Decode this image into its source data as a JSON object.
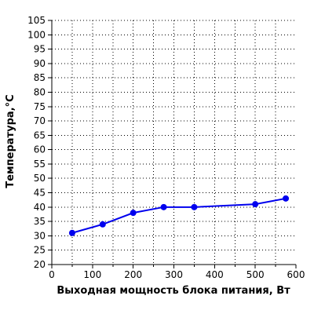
{
  "chart_data": {
    "type": "line",
    "xlabel": "Выходная мощность блока питания, Вт",
    "ylabel": "Температура,°C",
    "xlim": [
      0,
      600
    ],
    "ylim": [
      20,
      105
    ],
    "xticks": [
      0,
      100,
      200,
      300,
      400,
      500,
      600
    ],
    "xminor_step": 50,
    "yticks": [
      20,
      25,
      30,
      35,
      40,
      45,
      50,
      55,
      60,
      65,
      70,
      75,
      80,
      85,
      90,
      95,
      100,
      105
    ],
    "grid": true,
    "grid_style": "dotted",
    "series": [
      {
        "x": [
          50,
          125,
          200,
          275,
          350,
          500,
          575
        ],
        "y": [
          31,
          34,
          38,
          40,
          40,
          41,
          43
        ]
      }
    ],
    "colors": {
      "series": "#0000ee",
      "grid": "#000000",
      "axes": "#000000"
    }
  }
}
